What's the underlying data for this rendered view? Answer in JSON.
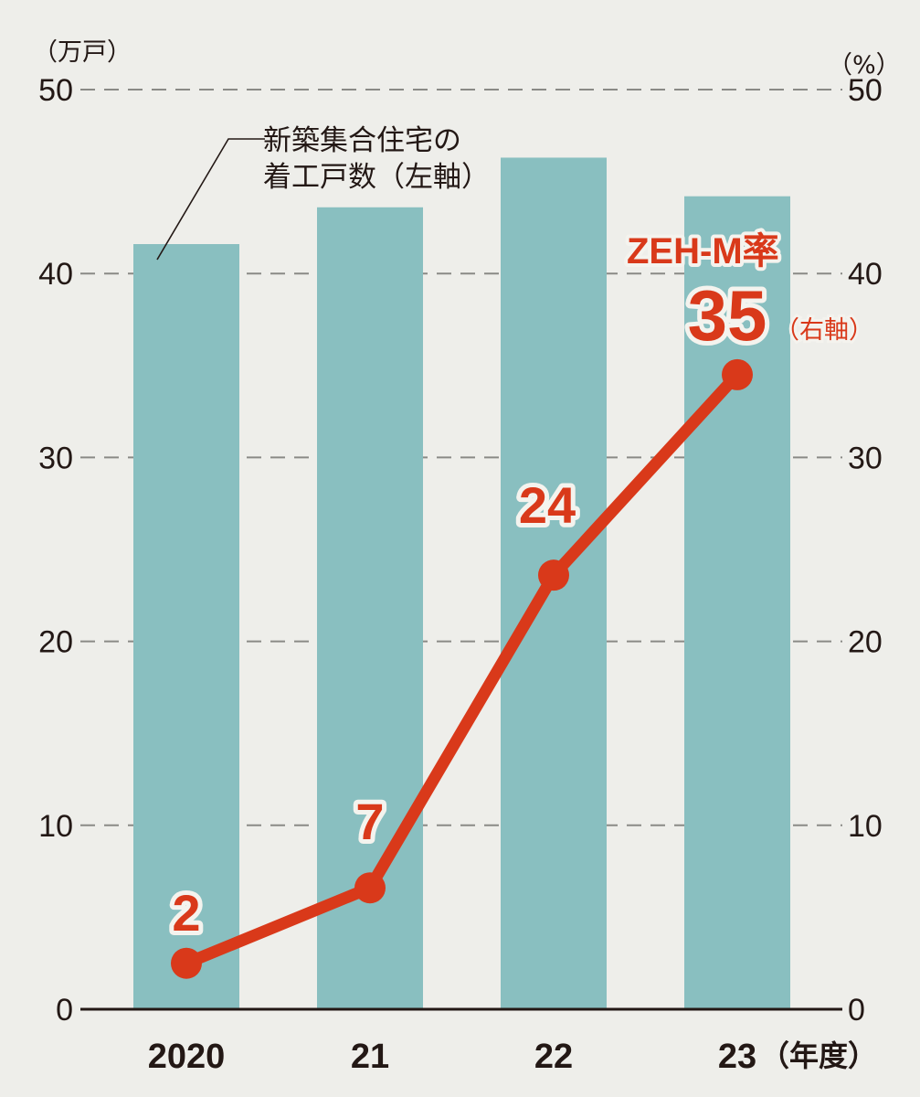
{
  "chart_data": {
    "type": "bar+line",
    "categories": [
      "2020",
      "21",
      "22",
      "23"
    ],
    "x_suffix": "（年度）",
    "series": [
      {
        "name": "新築集合住宅の着工戸数（左軸）",
        "type": "bar",
        "axis": "left",
        "unit": "万戸",
        "values": [
          41.6,
          43.6,
          46.3,
          44.2
        ],
        "color": "#89bfc0"
      },
      {
        "name": "ZEH-M率（右軸）",
        "type": "line",
        "axis": "right",
        "unit": "%",
        "values": [
          2.5,
          6.6,
          23.6,
          34.5
        ],
        "data_labels": [
          "2",
          "7",
          "24",
          "35"
        ],
        "color": "#d9391a"
      }
    ],
    "left_axis": {
      "label": "（万戸）",
      "ticks": [
        "0",
        "10",
        "20",
        "30",
        "40",
        "50"
      ],
      "ylim": [
        0,
        50
      ]
    },
    "right_axis": {
      "label": "（%）",
      "ticks": [
        "0",
        "10",
        "20",
        "30",
        "40",
        "50"
      ],
      "ylim": [
        0,
        50
      ]
    },
    "grid": "dashed horizontal",
    "annotations": {
      "bar_label_line1": "新築集合住宅の",
      "bar_label_line2": "着工戸数（左軸）",
      "line_title": "ZEH-M率",
      "line_axis_note": "（右軸）"
    }
  }
}
